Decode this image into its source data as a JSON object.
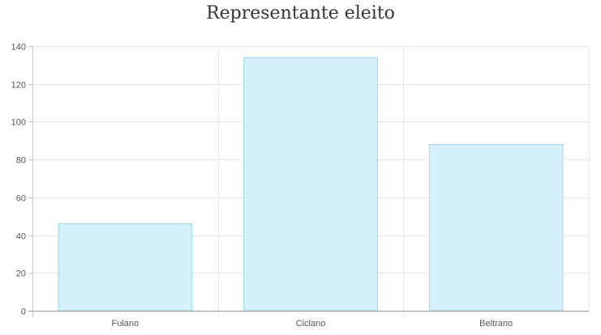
{
  "chart_data": {
    "type": "bar",
    "title": "Representante eleito",
    "xlabel": "",
    "ylabel": "",
    "categories": [
      "Fulano",
      "Ciclano",
      "Beltrano"
    ],
    "values": [
      46,
      134,
      88
    ],
    "ylim": [
      0,
      140
    ],
    "yticks": [
      0,
      20,
      40,
      60,
      80,
      100,
      120,
      140
    ],
    "grid": true,
    "legend": "none",
    "bar_color": "#d6f0fb",
    "bar_border_color": "#9ed9f0"
  }
}
